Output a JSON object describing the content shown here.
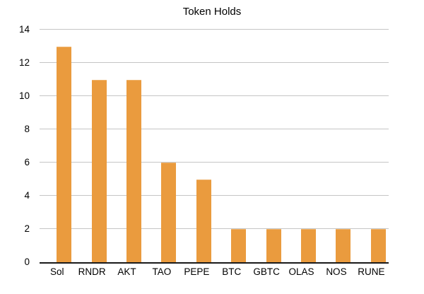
{
  "chart_data": {
    "type": "bar",
    "title": "Token Holds",
    "categories": [
      "Sol",
      "RNDR",
      "AKT",
      "TAO",
      "PEPE",
      "BTC",
      "GBTC",
      "OLAS",
      "NOS",
      "RUNE"
    ],
    "values": [
      13,
      11,
      11,
      6,
      5,
      2,
      2,
      2,
      2,
      2
    ],
    "xlabel": "",
    "ylabel": "",
    "ylim": [
      0,
      14
    ],
    "yticks": [
      0,
      2,
      4,
      6,
      8,
      10,
      12,
      14
    ],
    "grid": true,
    "legend": false
  },
  "colors": {
    "bar": "#EA9B3E",
    "gridline": "#C5C5C5",
    "axis": "#1A1A1A",
    "text": "#000000",
    "background": "#FFFFFF"
  }
}
